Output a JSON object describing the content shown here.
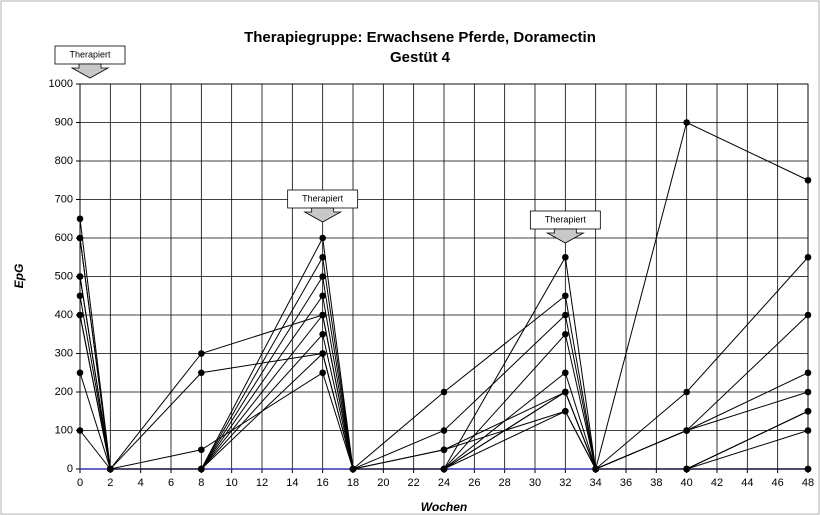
{
  "chart_data": {
    "type": "line",
    "title": "Therapiegruppe:   Erwachsene Pferde, Doramectin",
    "subtitle": "Gestüt 4",
    "x_label": "Wochen",
    "y_label": "EpG",
    "x": [
      0,
      2,
      8,
      16,
      18,
      24,
      32,
      34,
      40,
      48
    ],
    "xlim": [
      0,
      48
    ],
    "xticks": [
      0,
      2,
      4,
      6,
      8,
      10,
      12,
      14,
      16,
      18,
      20,
      22,
      24,
      26,
      28,
      30,
      32,
      34,
      36,
      38,
      40,
      42,
      44,
      46,
      48
    ],
    "ylim": [
      0,
      1000
    ],
    "yticks": [
      0,
      100,
      200,
      300,
      400,
      500,
      600,
      700,
      800,
      900,
      1000
    ],
    "grid": true,
    "series": [
      {
        "color": "#000000",
        "values": [
          650,
          0,
          300,
          400,
          0,
          200,
          450,
          0,
          900,
          750
        ]
      },
      {
        "color": "#000000",
        "values": [
          600,
          0,
          250,
          300,
          0,
          100,
          400,
          0,
          200,
          550
        ]
      },
      {
        "color": "#000000",
        "values": [
          500,
          0,
          50,
          250,
          0,
          50,
          200,
          0,
          100,
          400
        ]
      },
      {
        "color": "#000000",
        "values": [
          450,
          0,
          0,
          600,
          0,
          0,
          550,
          0,
          100,
          250
        ]
      },
      {
        "color": "#000000",
        "values": [
          400,
          0,
          0,
          550,
          0,
          0,
          350,
          0,
          100,
          200
        ]
      },
      {
        "color": "#000000",
        "values": [
          250,
          0,
          0,
          500,
          0,
          0,
          250,
          0,
          0,
          150
        ]
      },
      {
        "color": "#000000",
        "values": [
          100,
          0,
          0,
          450,
          0,
          0,
          200,
          0,
          0,
          150
        ]
      },
      {
        "color": "#000000",
        "values": [
          500,
          0,
          0,
          350,
          0,
          50,
          150,
          0,
          0,
          100
        ]
      },
      {
        "color": "#000000",
        "values": [
          600,
          0,
          0,
          300,
          0,
          0,
          150,
          0,
          0,
          0
        ]
      },
      {
        "color": "#000000",
        "values": [
          400,
          0,
          0,
          400,
          0,
          0,
          200,
          0,
          0,
          0
        ]
      }
    ],
    "annotations": [
      {
        "text": "Therapiert",
        "x": 0
      },
      {
        "text": "Therapiert",
        "x": 16
      },
      {
        "text": "Therapiert",
        "x": 32
      }
    ]
  }
}
